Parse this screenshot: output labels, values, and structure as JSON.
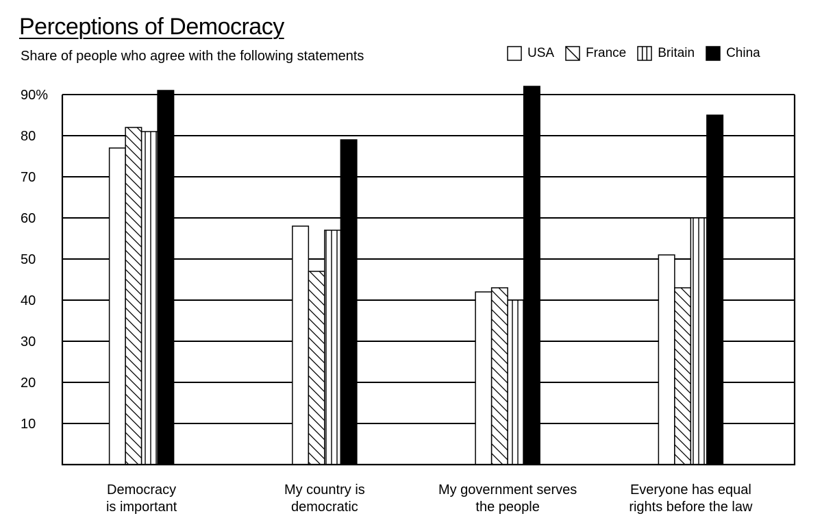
{
  "title": "Perceptions of Democracy",
  "subtitle": "Share of people who agree with the following statements",
  "legend": [
    {
      "label": "USA",
      "pattern": "solid-white"
    },
    {
      "label": "France",
      "pattern": "diagonal-hatch"
    },
    {
      "label": "Britain",
      "pattern": "vertical-stripes"
    },
    {
      "label": "China",
      "pattern": "solid-black"
    }
  ],
  "chart_data": {
    "type": "bar",
    "title": "Perceptions of Democracy",
    "subtitle": "Share of people who agree with the following statements",
    "categories": [
      "Democracy is important",
      "My country is democratic",
      "My government serves the people",
      "Everyone has equal rights before the law"
    ],
    "category_lines": [
      [
        "Democracy",
        "is important"
      ],
      [
        "My country is",
        "democratic"
      ],
      [
        "My government serves",
        "the people"
      ],
      [
        "Everyone has equal",
        "rights before the law"
      ]
    ],
    "series": [
      {
        "name": "USA",
        "values": [
          77,
          58,
          42,
          51
        ]
      },
      {
        "name": "France",
        "values": [
          82,
          47,
          43,
          43
        ]
      },
      {
        "name": "Britain",
        "values": [
          81,
          57,
          40,
          60
        ]
      },
      {
        "name": "China",
        "values": [
          91,
          79,
          92,
          85
        ]
      }
    ],
    "ylim": [
      0,
      90
    ],
    "yticks": [
      10,
      20,
      30,
      40,
      50,
      60,
      70,
      80,
      90
    ],
    "ytick_labels": [
      "10",
      "20",
      "30",
      "40",
      "50",
      "60",
      "70",
      "80",
      "90%"
    ],
    "grid": true,
    "legend_position": "top-right",
    "colors": {
      "ink": "#000000",
      "paper": "#ffffff"
    }
  }
}
